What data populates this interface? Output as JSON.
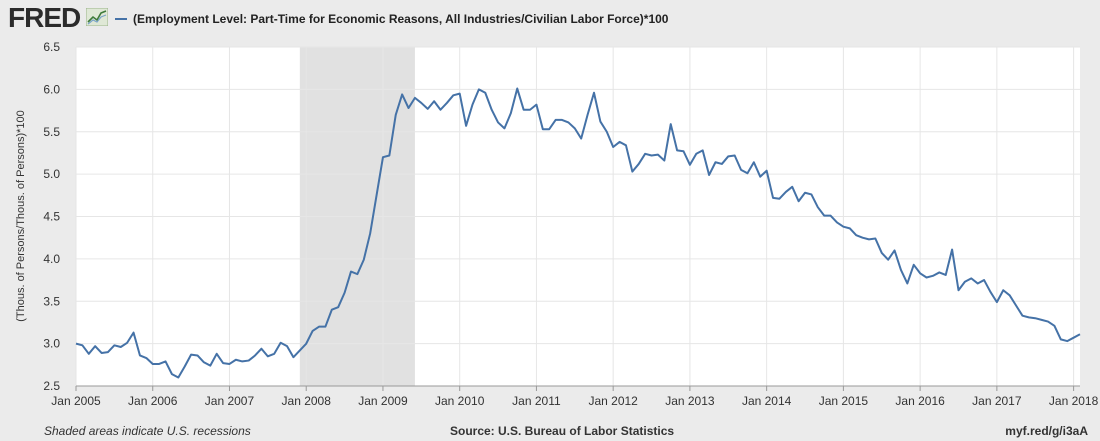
{
  "header": {
    "logo": "FRED",
    "logo_icon": "fred-chart-icon",
    "series_name": "(Employment Level: Part-Time for Economic Reasons, All Industries/Civilian Labor Force)*100",
    "series_color": "#4572a7"
  },
  "footer": {
    "recession_note": "Shaded areas indicate U.S. recessions",
    "source": "Source: U.S. Bureau of Labor Statistics",
    "url": "myf.red/g/i3aA"
  },
  "chart_data": {
    "type": "line",
    "title": "",
    "xlabel": "",
    "ylabel": "(Thous. of Persons/Thous. of Persons)*100",
    "ylim": [
      2.5,
      6.5
    ],
    "yticks": [
      "2.5",
      "3.0",
      "3.5",
      "4.0",
      "4.5",
      "5.0",
      "5.5",
      "6.0",
      "6.5"
    ],
    "xlim": [
      "2005-01",
      "2018-02"
    ],
    "xticks": [
      "Jan 2005",
      "Jan 2006",
      "Jan 2007",
      "Jan 2008",
      "Jan 2009",
      "Jan 2010",
      "Jan 2011",
      "Jan 2012",
      "Jan 2013",
      "Jan 2014",
      "Jan 2015",
      "Jan 2016",
      "Jan 2017",
      "Jan 2018"
    ],
    "grid": true,
    "recession": {
      "start": "2007-12",
      "end": "2009-06",
      "color": "#e1e1e1"
    },
    "series": [
      {
        "name": "(Employment Level: Part-Time for Economic Reasons, All Industries/Civilian Labor Force)*100",
        "color": "#4572a7",
        "start": "2005-01",
        "frequency": "monthly",
        "values": [
          3.0,
          2.98,
          2.88,
          2.97,
          2.89,
          2.9,
          2.98,
          2.96,
          3.01,
          3.13,
          2.86,
          2.83,
          2.76,
          2.76,
          2.79,
          2.64,
          2.6,
          2.73,
          2.87,
          2.86,
          2.78,
          2.74,
          2.88,
          2.77,
          2.76,
          2.81,
          2.79,
          2.8,
          2.86,
          2.94,
          2.85,
          2.88,
          3.01,
          2.97,
          2.84,
          2.92,
          3.0,
          3.15,
          3.2,
          3.2,
          3.4,
          3.43,
          3.6,
          3.85,
          3.82,
          3.99,
          4.3,
          4.75,
          5.2,
          5.22,
          5.7,
          5.94,
          5.78,
          5.9,
          5.84,
          5.77,
          5.86,
          5.76,
          5.84,
          5.93,
          5.95,
          5.57,
          5.82,
          6.0,
          5.96,
          5.76,
          5.61,
          5.54,
          5.72,
          6.01,
          5.76,
          5.76,
          5.82,
          5.53,
          5.53,
          5.64,
          5.64,
          5.61,
          5.54,
          5.42,
          5.7,
          5.96,
          5.62,
          5.5,
          5.32,
          5.38,
          5.34,
          5.03,
          5.12,
          5.24,
          5.22,
          5.23,
          5.16,
          5.59,
          5.28,
          5.27,
          5.11,
          5.24,
          5.28,
          4.99,
          5.14,
          5.12,
          5.21,
          5.22,
          5.05,
          5.01,
          5.14,
          4.97,
          5.04,
          4.72,
          4.71,
          4.79,
          4.85,
          4.68,
          4.78,
          4.76,
          4.61,
          4.51,
          4.51,
          4.43,
          4.38,
          4.36,
          4.28,
          4.25,
          4.23,
          4.24,
          4.07,
          3.99,
          4.1,
          3.87,
          3.71,
          3.93,
          3.83,
          3.78,
          3.8,
          3.84,
          3.81,
          4.11,
          3.63,
          3.73,
          3.77,
          3.71,
          3.75,
          3.61,
          3.49,
          3.63,
          3.57,
          3.45,
          3.33,
          3.31,
          3.3,
          3.28,
          3.26,
          3.21,
          3.05,
          3.03,
          3.07,
          3.11
        ]
      }
    ]
  }
}
